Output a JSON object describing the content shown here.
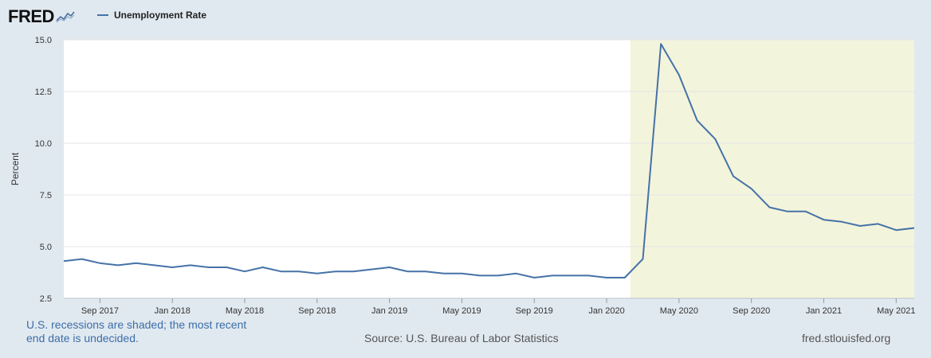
{
  "logo": {
    "text": "FRED",
    "icon": "line-graph-icon"
  },
  "colors": {
    "series": "#4572a7",
    "recession_shade": "#f3f4dc",
    "background": "#e1e9f0",
    "plot_background": "#ffffff",
    "note_text": "#3a6ea8"
  },
  "footer": {
    "note": "U.S. recessions are shaded; the most recent end date is undecided.",
    "source": "Source: U.S. Bureau of Labor Statistics",
    "site": "fred.stlouisfed.org"
  },
  "chart_data": {
    "type": "line",
    "title": "",
    "xlabel": "",
    "ylabel": "Percent",
    "ylim": [
      2.5,
      15.0
    ],
    "yticks": [
      "2.5",
      "5.0",
      "7.5",
      "10.0",
      "12.5",
      "15.0"
    ],
    "xlim": [
      "2017-07",
      "2021-06"
    ],
    "xticks": [
      {
        "label": "Sep 2017",
        "date": "2017-09"
      },
      {
        "label": "Jan 2018",
        "date": "2018-01"
      },
      {
        "label": "May 2018",
        "date": "2018-05"
      },
      {
        "label": "Sep 2018",
        "date": "2018-09"
      },
      {
        "label": "Jan 2019",
        "date": "2019-01"
      },
      {
        "label": "May 2019",
        "date": "2019-05"
      },
      {
        "label": "Sep 2019",
        "date": "2019-09"
      },
      {
        "label": "Jan 2020",
        "date": "2020-01"
      },
      {
        "label": "May 2020",
        "date": "2020-05"
      },
      {
        "label": "Sep 2020",
        "date": "2020-09"
      },
      {
        "label": "Jan 2021",
        "date": "2021-01"
      },
      {
        "label": "May 2021",
        "date": "2021-05"
      }
    ],
    "recession": {
      "start": "2020-02",
      "end": "2021-06"
    },
    "grid": true,
    "legend": "top-left",
    "series": [
      {
        "name": "Unemployment Rate",
        "x": [
          "2017-07",
          "2017-08",
          "2017-09",
          "2017-10",
          "2017-11",
          "2017-12",
          "2018-01",
          "2018-02",
          "2018-03",
          "2018-04",
          "2018-05",
          "2018-06",
          "2018-07",
          "2018-08",
          "2018-09",
          "2018-10",
          "2018-11",
          "2018-12",
          "2019-01",
          "2019-02",
          "2019-03",
          "2019-04",
          "2019-05",
          "2019-06",
          "2019-07",
          "2019-08",
          "2019-09",
          "2019-10",
          "2019-11",
          "2019-12",
          "2020-01",
          "2020-02",
          "2020-03",
          "2020-04",
          "2020-05",
          "2020-06",
          "2020-07",
          "2020-08",
          "2020-09",
          "2020-10",
          "2020-11",
          "2020-12",
          "2021-01",
          "2021-02",
          "2021-03",
          "2021-04",
          "2021-05",
          "2021-06"
        ],
        "values": [
          4.3,
          4.4,
          4.2,
          4.1,
          4.2,
          4.1,
          4.0,
          4.1,
          4.0,
          4.0,
          3.8,
          4.0,
          3.8,
          3.8,
          3.7,
          3.8,
          3.8,
          3.9,
          4.0,
          3.8,
          3.8,
          3.7,
          3.7,
          3.6,
          3.6,
          3.7,
          3.5,
          3.6,
          3.6,
          3.6,
          3.5,
          3.5,
          4.4,
          14.8,
          13.3,
          11.1,
          10.2,
          8.4,
          7.8,
          6.9,
          6.7,
          6.7,
          6.3,
          6.2,
          6.0,
          6.1,
          5.8,
          5.9
        ]
      }
    ]
  }
}
